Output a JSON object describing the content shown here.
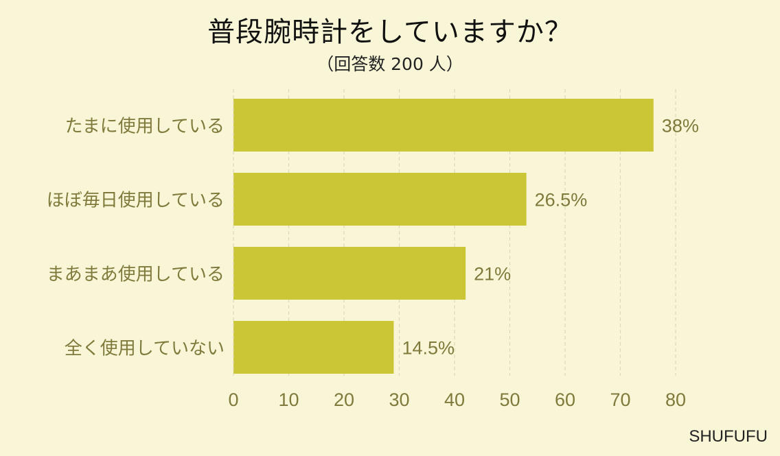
{
  "title": "普段腕時計をしていますか？",
  "subtitle": "（回答数 200 人）",
  "credit": "SHUFUFU",
  "colors": {
    "bar": "#cbc635",
    "text": "#7f7a3c",
    "grid": "#dcd9b8",
    "background": "#f8f6d6"
  },
  "chart_data": {
    "type": "bar",
    "orientation": "horizontal",
    "title": "普段腕時計をしていますか？",
    "subtitle": "（回答数 200 人）",
    "categories": [
      "たまに使用している",
      "ほぼ毎日使用している",
      "まあまあ使用している",
      "全く使用していない"
    ],
    "values": [
      76,
      53,
      42,
      29
    ],
    "data_labels": [
      "38%",
      "26.5%",
      "21%",
      "14.5%"
    ],
    "xticks": [
      0,
      10,
      20,
      30,
      40,
      50,
      60,
      70,
      80
    ],
    "xlim": [
      0,
      80
    ],
    "grid": "vertical dashed",
    "xlabel": "",
    "ylabel": ""
  }
}
